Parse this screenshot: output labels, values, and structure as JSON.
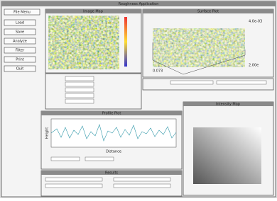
{
  "window_title": "Roughness Application",
  "menu": "File Menu",
  "buttons": [
    "Load",
    "Save",
    "Analyze",
    "Filter",
    "Print",
    "Quit"
  ],
  "panels": {
    "image": "Image Map",
    "surface": "Surface Plot",
    "profile": "Profile Plot",
    "intensity": "Intensity Map",
    "results": "Results"
  },
  "surface_labels": {
    "z_top": "4.0e-03",
    "x_axis": "0.073",
    "y_axis": "2.00e"
  },
  "profile_labels": {
    "y_axis": "Height",
    "x_axis": "Distance"
  }
}
